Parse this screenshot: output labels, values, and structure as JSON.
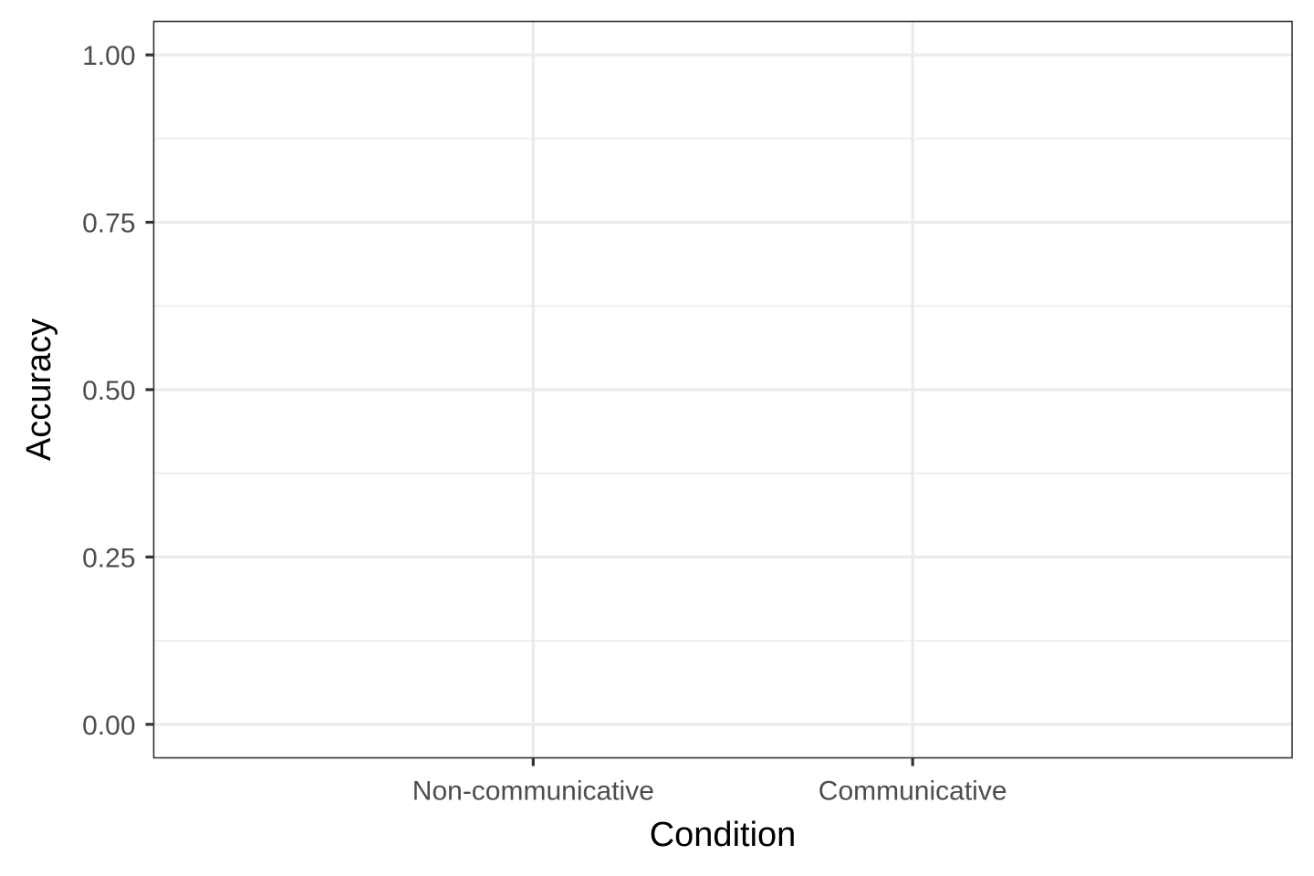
{
  "chart_data": {
    "type": "scatter",
    "title": "",
    "xlabel": "Condition",
    "ylabel": "Accuracy",
    "categories": [
      "Non-communicative",
      "Communicative"
    ],
    "series": [],
    "ylim": [
      -0.05,
      1.05
    ],
    "yticks": [
      0,
      0.25,
      0.5,
      0.75,
      1
    ],
    "ytick_labels": [
      "0.00",
      "0.25",
      "0.50",
      "0.75",
      "1.00"
    ],
    "grid": true,
    "legend": "none"
  },
  "colors": {
    "background": "#ffffff",
    "grid": "#ebebeb",
    "border": "#333333",
    "tick_text": "#4d4d4d",
    "axis_title": "#000000"
  }
}
